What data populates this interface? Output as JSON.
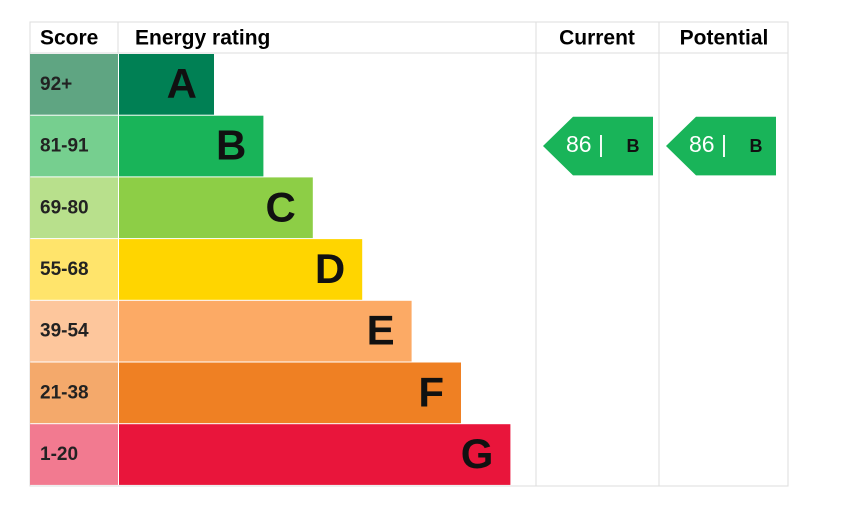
{
  "header": {
    "score": "Score",
    "rating": "Energy rating",
    "current": "Current",
    "potential": "Potential"
  },
  "bands": [
    {
      "score": "92+",
      "letter": "A",
      "color": "#008054",
      "score_color": "#5fa582"
    },
    {
      "score": "81-91",
      "letter": "B",
      "color": "#19b459",
      "score_color": "#76cf8f"
    },
    {
      "score": "69-80",
      "letter": "C",
      "color": "#8dce46",
      "score_color": "#b8e08c"
    },
    {
      "score": "55-68",
      "letter": "D",
      "color": "#ffd500",
      "score_color": "#ffe46b"
    },
    {
      "score": "39-54",
      "letter": "E",
      "color": "#fcaa65",
      "score_color": "#fdc69c"
    },
    {
      "score": "21-38",
      "letter": "F",
      "color": "#ef8023",
      "score_color": "#f4a96b"
    },
    {
      "score": "1-20",
      "letter": "G",
      "color": "#e9153b",
      "score_color": "#f27a90"
    }
  ],
  "current": {
    "value": 86,
    "label": "86 |",
    "band": "B"
  },
  "potential": {
    "value": 86,
    "label": "86 |",
    "band": "B"
  }
}
